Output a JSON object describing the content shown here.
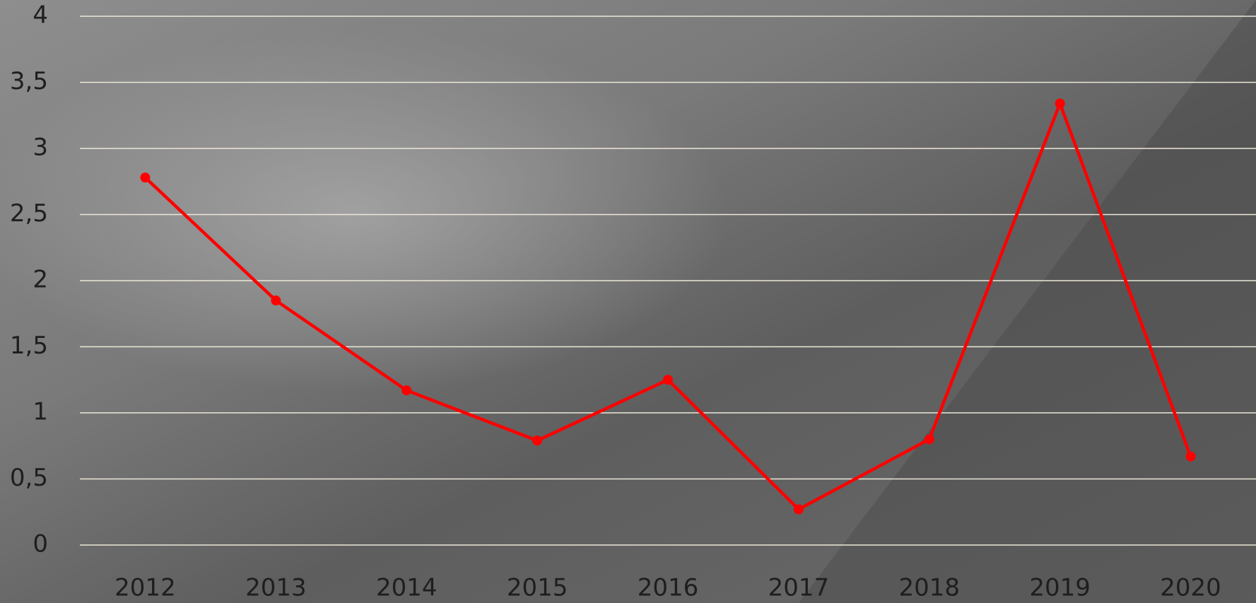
{
  "chart_data": {
    "type": "line",
    "categories": [
      "2012",
      "2013",
      "2014",
      "2015",
      "2016",
      "2017",
      "2018",
      "2019",
      "2020"
    ],
    "series": [
      {
        "color": "#ff0000",
        "values": [
          2.78,
          1.85,
          1.17,
          0.79,
          1.25,
          0.27,
          0.8,
          3.34,
          0.67
        ]
      }
    ],
    "ylim": [
      0,
      4
    ],
    "yticks": [
      0,
      {
        "value": 0.5,
        "label": "0,5"
      },
      1,
      {
        "value": 1.5,
        "label": "1,5"
      },
      2,
      {
        "value": 2.5,
        "label": "2,5"
      },
      3,
      {
        "value": 3.5,
        "label": "3,5"
      },
      4
    ],
    "grid": true
  }
}
